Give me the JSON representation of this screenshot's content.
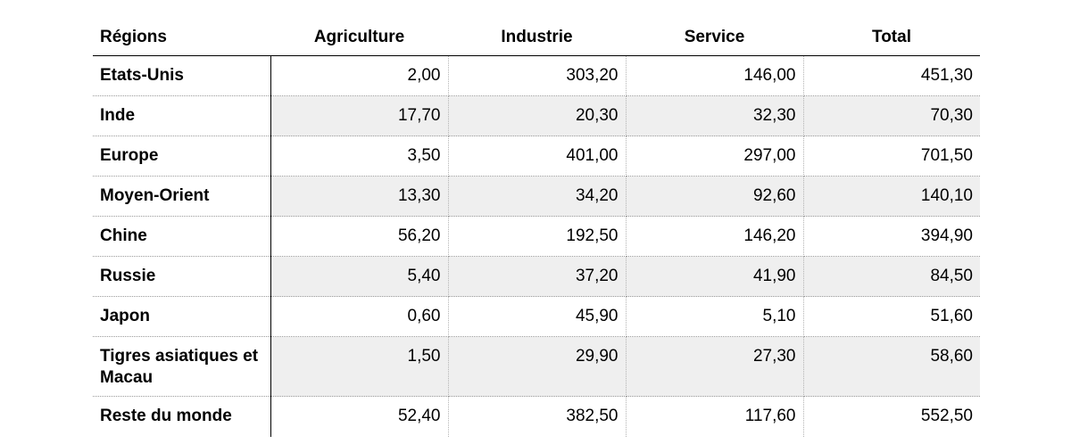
{
  "table": {
    "headers": [
      "Régions",
      "Agriculture",
      "Industrie",
      "Service",
      "Total"
    ],
    "rows": [
      {
        "region": "Etats-Unis",
        "agriculture": "2,00",
        "industrie": "303,20",
        "service": "146,00",
        "total": "451,30"
      },
      {
        "region": "Inde",
        "agriculture": "17,70",
        "industrie": "20,30",
        "service": "32,30",
        "total": "70,30"
      },
      {
        "region": "Europe",
        "agriculture": "3,50",
        "industrie": "401,00",
        "service": "297,00",
        "total": "701,50"
      },
      {
        "region": "Moyen-Orient",
        "agriculture": "13,30",
        "industrie": "34,20",
        "service": "92,60",
        "total": "140,10"
      },
      {
        "region": "Chine",
        "agriculture": "56,20",
        "industrie": "192,50",
        "service": "146,20",
        "total": "394,90"
      },
      {
        "region": "Russie",
        "agriculture": "5,40",
        "industrie": "37,20",
        "service": "41,90",
        "total": "84,50"
      },
      {
        "region": "Japon",
        "agriculture": "0,60",
        "industrie": "45,90",
        "service": "5,10",
        "total": "51,60"
      },
      {
        "region": "Tigres asiatiques et Macau",
        "agriculture": "1,50",
        "industrie": "29,90",
        "service": "27,30",
        "total": "58,60"
      },
      {
        "region": "Reste du monde",
        "agriculture": "52,40",
        "industrie": "382,50",
        "service": "117,60",
        "total": "552,50"
      }
    ]
  }
}
